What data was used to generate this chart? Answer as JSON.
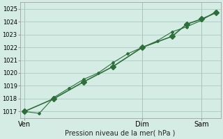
{
  "background_color": "#d4ece4",
  "grid_color": "#a8ccc0",
  "line_color": "#2d6e3a",
  "title": "Pression niveau de la mer( hPa )",
  "ylim": [
    1016.5,
    1025.5
  ],
  "yticks": [
    1017,
    1018,
    1019,
    1020,
    1021,
    1022,
    1023,
    1024,
    1025
  ],
  "xtick_labels": [
    "Ven",
    "Dim",
    "Sam"
  ],
  "xtick_positions": [
    0,
    8,
    12
  ],
  "vline_positions": [
    0,
    8,
    12
  ],
  "line1_x": [
    0,
    2,
    4,
    6,
    8,
    10,
    11,
    12,
    13
  ],
  "line1_y": [
    1017.0,
    1018.0,
    1019.3,
    1020.5,
    1022.0,
    1022.85,
    1023.8,
    1024.2,
    1024.7
  ],
  "line2_x": [
    0,
    1,
    2,
    3,
    4,
    5,
    6,
    7,
    8,
    9,
    10,
    11,
    12,
    13
  ],
  "line2_y": [
    1017.0,
    1016.85,
    1018.1,
    1018.8,
    1019.5,
    1020.0,
    1020.8,
    1021.5,
    1022.0,
    1022.5,
    1023.2,
    1023.6,
    1024.1,
    1024.8
  ],
  "marker1": "D",
  "markersize1": 4,
  "linewidth1": 1.2,
  "marker2": "D",
  "markersize2": 2,
  "linewidth2": 0.8
}
